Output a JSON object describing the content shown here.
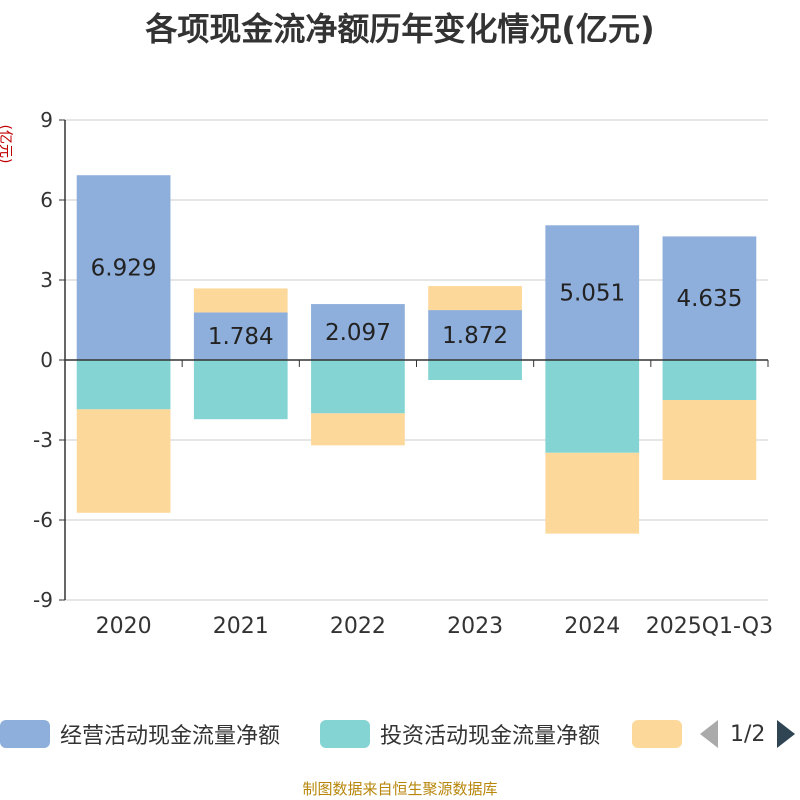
{
  "chart_data": {
    "type": "bar",
    "stacked": true,
    "title": "各项现金流净额历年变化情况(亿元)",
    "ylabel": "(亿元)",
    "ylim": [
      -9,
      9
    ],
    "yticks": [
      9,
      6,
      3,
      0,
      -3,
      -6,
      -9
    ],
    "categories": [
      "2020",
      "2021",
      "2022",
      "2023",
      "2024",
      "2025Q1-Q3"
    ],
    "series": [
      {
        "name": "经营活动现金流量净额",
        "color": "#8eaedb",
        "values": [
          6.929,
          1.784,
          2.097,
          1.872,
          5.051,
          4.635
        ],
        "labels": [
          "6.929",
          "1.784",
          "2.097",
          "1.872",
          "5.051",
          "4.635"
        ]
      },
      {
        "name": "投资活动现金流量净额",
        "color": "#85d4d4",
        "values": [
          -1.85,
          -2.22,
          -2.0,
          -0.75,
          -3.48,
          -1.5
        ]
      },
      {
        "name": "",
        "color": "#fdd89b",
        "values": [
          -3.88,
          0.9,
          -1.2,
          0.9,
          -3.03,
          -3.0
        ]
      }
    ],
    "legend_position": "bottom",
    "legend_page": "1/2",
    "grid": true
  },
  "source": "制图数据来自恒生聚源数据库"
}
